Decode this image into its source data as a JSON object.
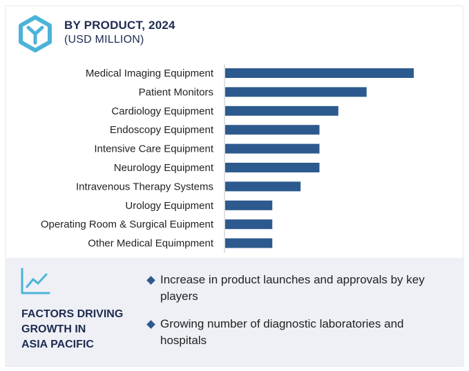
{
  "header": {
    "title": "BY PRODUCT, 2024",
    "subtitle": "(USD MILLION)",
    "logo_icon": "hexagon-y-logo-icon"
  },
  "colors": {
    "bar": "#2d5a8e",
    "title": "#1d2b50",
    "footer_bg": "#eef0f5",
    "accent": "#4bb3d9"
  },
  "chart_data": {
    "type": "bar",
    "orientation": "horizontal",
    "categories": [
      "Medical Imaging Equipment",
      "Patient Monitors",
      "Cardiology Equipment",
      "Endoscopy Equipment",
      "Intensive Care Equipment",
      "Neurology Equipment",
      "Intravenous Therapy Systems",
      "Urology Equipment",
      "Operating Room & Surgical Euipment",
      "Other Medical Equimpment"
    ],
    "values": [
      100,
      75,
      60,
      50,
      50,
      50,
      40,
      25,
      25,
      25
    ],
    "xlim": [
      0,
      100
    ],
    "grid": false,
    "legend": "none"
  },
  "footer": {
    "icon": "trend-line-chart-icon",
    "title_lines": [
      "FACTORS DRIVING",
      "GROWTH IN",
      "ASIA PACIFIC"
    ],
    "bullets": [
      "Increase in product launches and approvals by key players",
      "Growing number of diagnostic laboratories and hospitals"
    ]
  }
}
